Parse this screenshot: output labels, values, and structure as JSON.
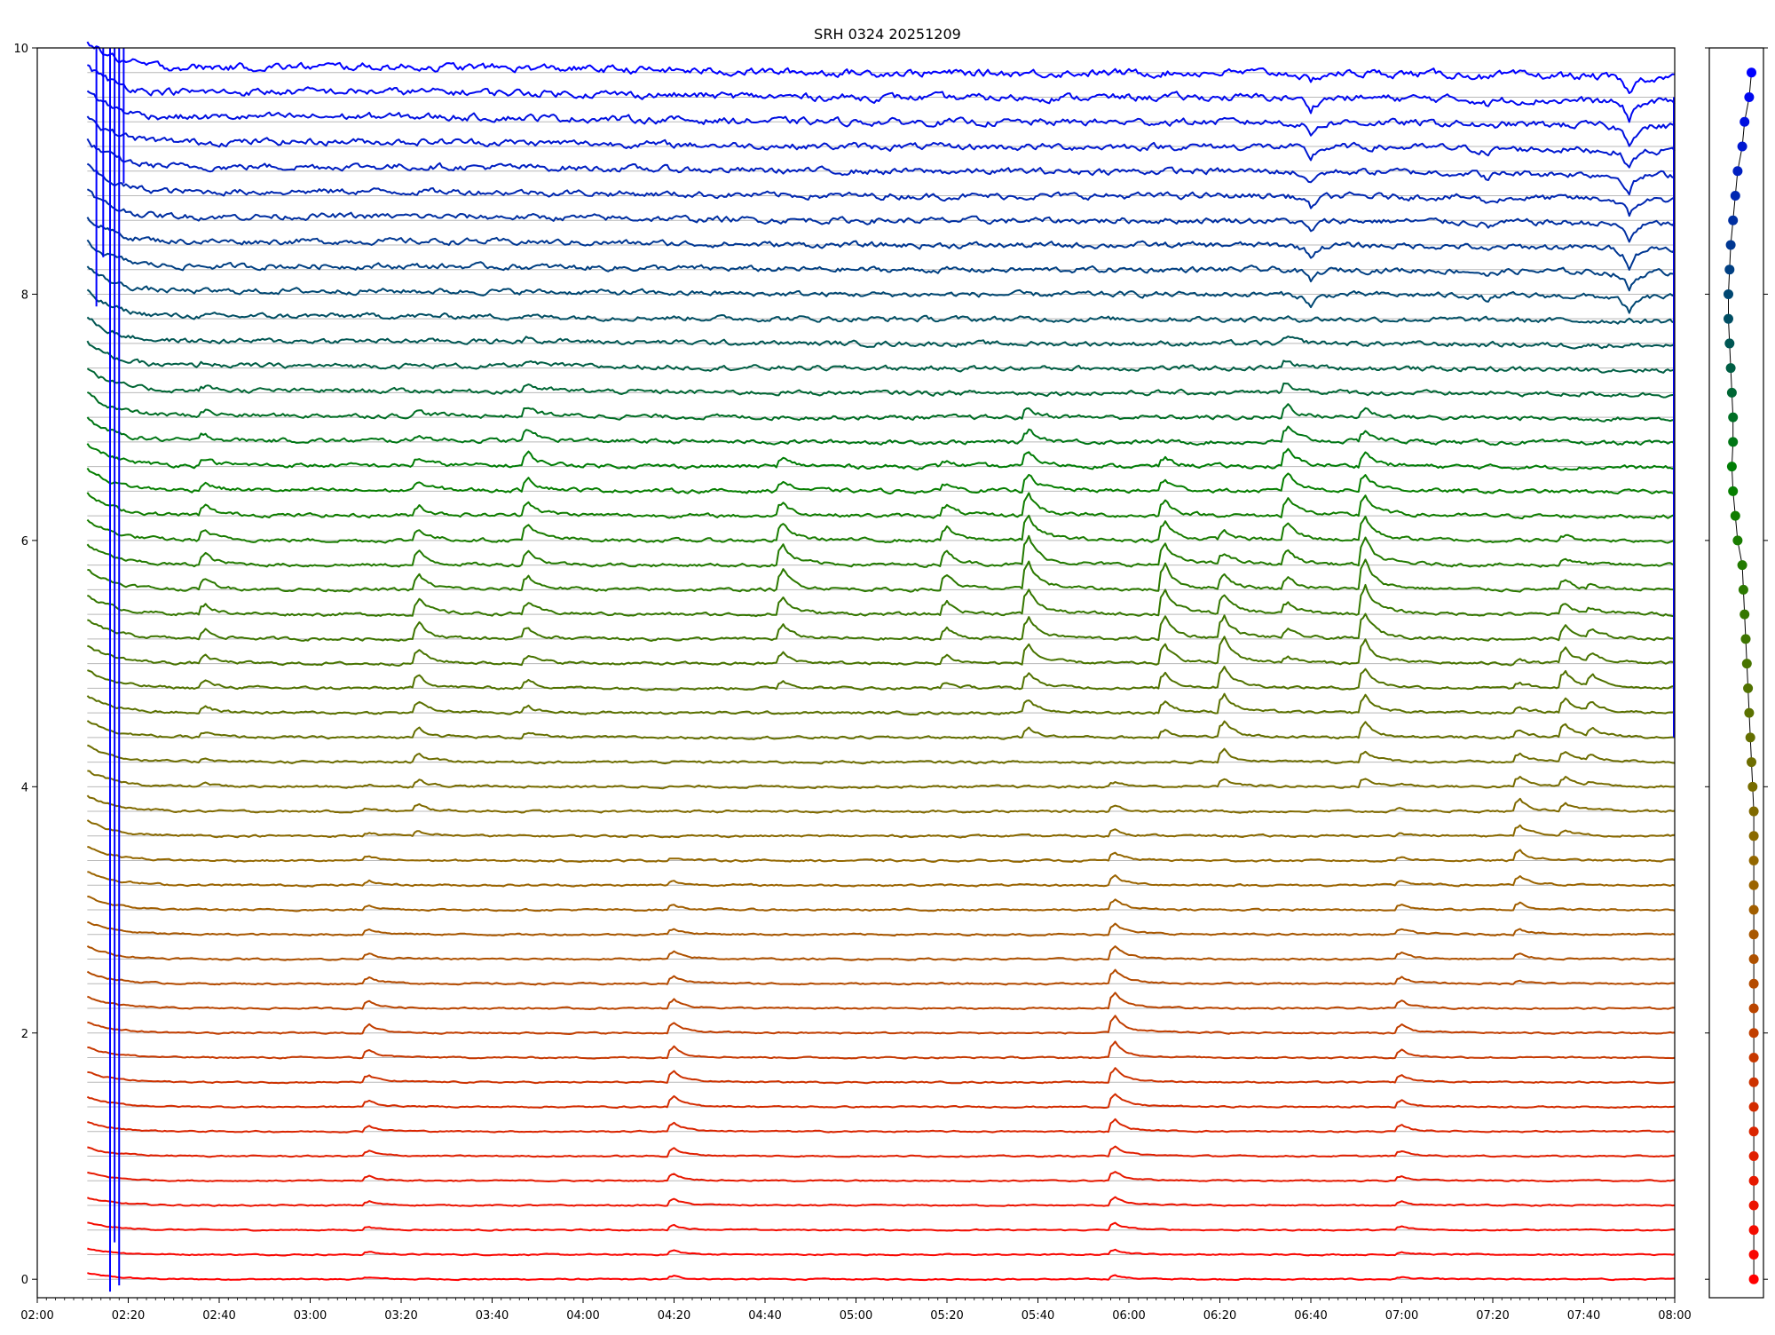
{
  "chart_data": [
    {
      "type": "line",
      "title": "SRH 0324 20251209",
      "xlabel": "",
      "ylabel": "",
      "x_range": [
        "02:00",
        "08:00"
      ],
      "ylim": [
        -0.15,
        10
      ],
      "x_ticks": [
        "02:00",
        "02:20",
        "02:40",
        "03:00",
        "03:20",
        "03:40",
        "04:00",
        "04:20",
        "04:40",
        "05:00",
        "05:20",
        "05:40",
        "06:00",
        "06:20",
        "06:40",
        "07:00",
        "07:20",
        "07:40",
        "08:00"
      ],
      "y_ticks": [
        "0",
        "2",
        "4",
        "6",
        "8",
        "10"
      ],
      "series_count": 50,
      "series_offset_step": 0.2,
      "data_start": "02:11",
      "data_end": "08:00",
      "color_ramp": [
        "#ff0000",
        "#996600",
        "#008000",
        "#0000ff"
      ],
      "grid": "horizontal lines at each series baseline",
      "events": [
        {
          "time": "02:37",
          "amp": 0.07,
          "rows": [
            20,
            37
          ]
        },
        {
          "time": "03:13",
          "amp": 0.05,
          "rows": [
            0,
            20
          ]
        },
        {
          "time": "03:24",
          "amp": 0.1,
          "rows": [
            18,
            35
          ]
        },
        {
          "time": "03:48",
          "amp": 0.1,
          "rows": [
            22,
            38
          ]
        },
        {
          "time": "04:20",
          "amp": 0.07,
          "rows": [
            0,
            17
          ]
        },
        {
          "time": "04:44",
          "amp": 0.13,
          "rows": [
            24,
            33
          ]
        },
        {
          "time": "05:20",
          "amp": 0.1,
          "rows": [
            24,
            33
          ]
        },
        {
          "time": "05:38",
          "amp": 0.18,
          "rows": [
            22,
            35
          ]
        },
        {
          "time": "05:57",
          "amp": 0.1,
          "rows": [
            0,
            20
          ]
        },
        {
          "time": "06:08",
          "amp": 0.16,
          "rows": [
            22,
            33
          ]
        },
        {
          "time": "06:21",
          "amp": 0.15,
          "rows": [
            20,
            30
          ]
        },
        {
          "time": "06:35",
          "amp": 0.12,
          "rows": [
            25,
            38
          ]
        },
        {
          "time": "06:52",
          "amp": 0.18,
          "rows": [
            20,
            35
          ]
        },
        {
          "time": "07:00",
          "amp": 0.05,
          "rows": [
            0,
            20
          ]
        },
        {
          "time": "07:26",
          "amp": 0.07,
          "rows": [
            12,
            25
          ]
        },
        {
          "time": "07:36",
          "amp": 0.1,
          "rows": [
            18,
            30
          ]
        },
        {
          "time": "07:42",
          "amp": 0.06,
          "rows": [
            20,
            28
          ]
        }
      ],
      "dips": [
        {
          "time": "06:40",
          "amp": -0.1,
          "rows": [
            40,
            49
          ]
        },
        {
          "time": "07:19",
          "amp": -0.05,
          "rows": [
            40,
            49
          ]
        },
        {
          "time": "07:50",
          "amp": -0.15,
          "rows": [
            40,
            49
          ]
        }
      ]
    },
    {
      "type": "scatter",
      "title": "",
      "point_count": 50,
      "y_values_step": 0.2,
      "x_values": [
        0.06,
        0.06,
        0.06,
        0.06,
        0.06,
        0.06,
        0.06,
        0.06,
        0.06,
        0.06,
        0.06,
        0.06,
        0.06,
        0.06,
        0.06,
        0.06,
        0.06,
        0.06,
        0.06,
        0.06,
        0.055,
        0.05,
        0.045,
        0.04,
        0.035,
        0.03,
        0.025,
        0.02,
        0.015,
        0.01,
        -0.01,
        -0.02,
        -0.03,
        -0.035,
        -0.03,
        -0.03,
        -0.035,
        -0.04,
        -0.045,
        -0.05,
        -0.05,
        -0.045,
        -0.04,
        -0.03,
        -0.02,
        -0.01,
        0.01,
        0.02,
        0.04,
        0.05
      ],
      "line_color": "#000000"
    }
  ]
}
